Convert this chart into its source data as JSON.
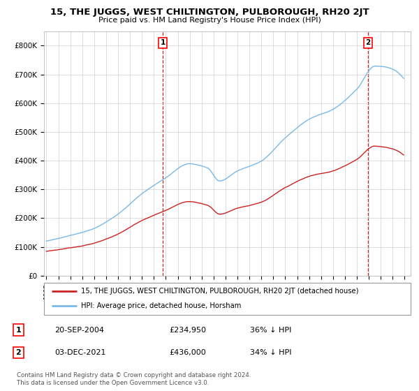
{
  "title": "15, THE JUGGS, WEST CHILTINGTON, PULBOROUGH, RH20 2JT",
  "subtitle": "Price paid vs. HM Land Registry's House Price Index (HPI)",
  "ylim": [
    0,
    850000
  ],
  "yticks": [
    0,
    100000,
    200000,
    300000,
    400000,
    500000,
    600000,
    700000,
    800000
  ],
  "ytick_labels": [
    "£0",
    "£100K",
    "£200K",
    "£300K",
    "£400K",
    "£500K",
    "£600K",
    "£700K",
    "£800K"
  ],
  "background_color": "#ffffff",
  "plot_bg_color": "#ffffff",
  "grid_color": "#d0d0d0",
  "hpi_color": "#7ab8e8",
  "price_color": "#cc2222",
  "legend_line1": "15, THE JUGGS, WEST CHILTINGTON, PULBOROUGH, RH20 2JT (detached house)",
  "legend_line2": "HPI: Average price, detached house, Horsham",
  "table_row1": [
    "1",
    "20-SEP-2004",
    "£234,950",
    "36% ↓ HPI"
  ],
  "table_row2": [
    "2",
    "03-DEC-2021",
    "£436,000",
    "34% ↓ HPI"
  ],
  "footnote": "Contains HM Land Registry data © Crown copyright and database right 2024.\nThis data is licensed under the Open Government Licence v3.0.",
  "sale1_year": 2004.75,
  "sale2_year": 2021.92,
  "sale1_price": 234950,
  "sale2_price": 436000
}
